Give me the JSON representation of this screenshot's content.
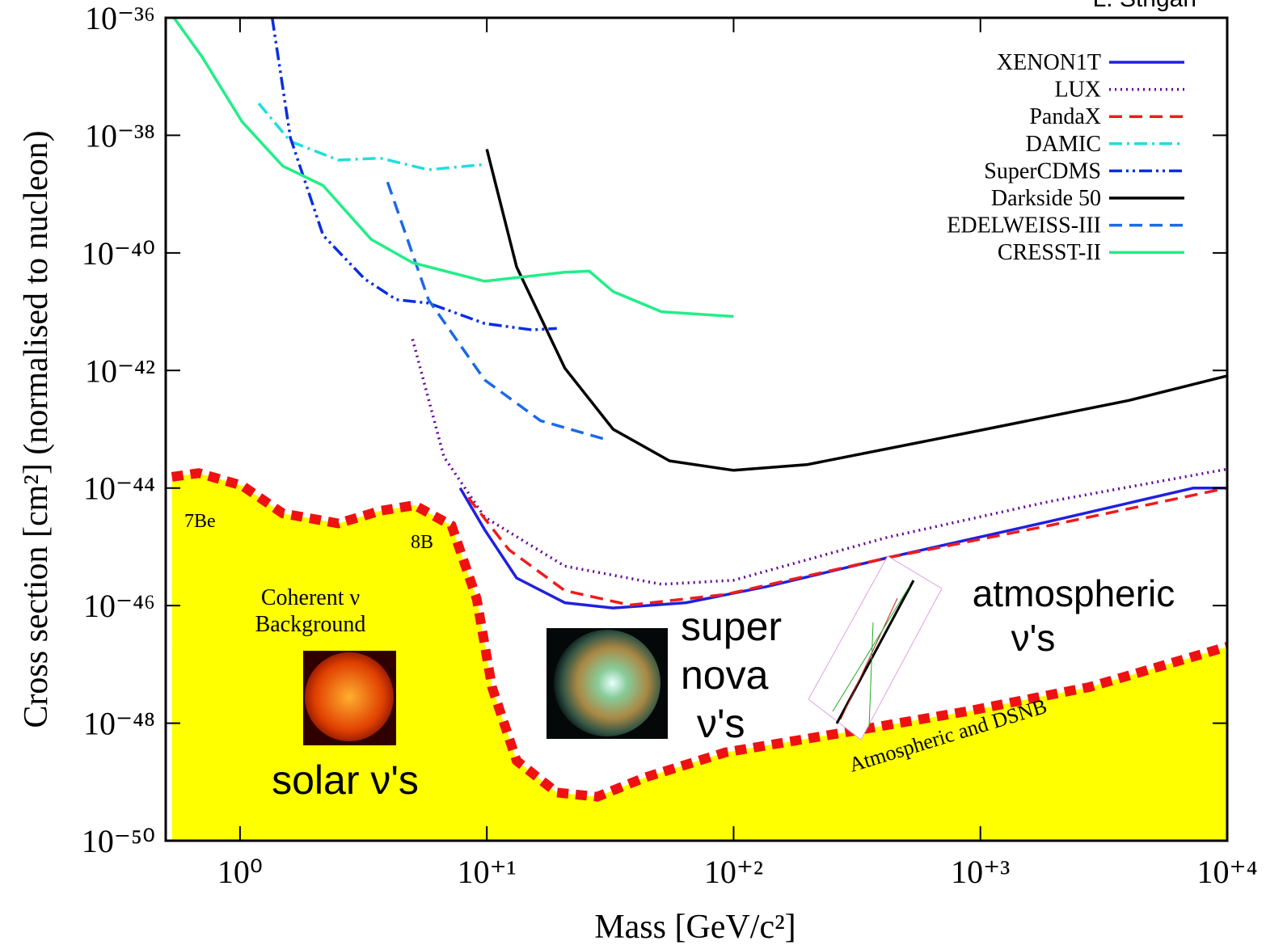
{
  "chart_data": {
    "type": "line",
    "credit": "L. Strigari",
    "xlabel": "Mass [GeV/c²]",
    "ylabel": "Cross section [cm²] (normalised to nucleon)",
    "xscale": "log",
    "yscale": "log",
    "xlim": [
      0.5,
      10000
    ],
    "ylim": [
      1e-50,
      1e-36
    ],
    "xticks": [
      {
        "value": 1,
        "label": "10⁰"
      },
      {
        "value": 10,
        "label": "10⁺¹"
      },
      {
        "value": 100,
        "label": "10⁺²"
      },
      {
        "value": 1000,
        "label": "10⁺³"
      },
      {
        "value": 10000,
        "label": "10⁺⁴"
      }
    ],
    "yticks": [
      {
        "value": 1e-36,
        "label": "10⁻³⁶"
      },
      {
        "value": 1e-38,
        "label": "10⁻³⁸"
      },
      {
        "value": 1e-40,
        "label": "10⁻⁴⁰"
      },
      {
        "value": 1e-42,
        "label": "10⁻⁴²"
      },
      {
        "value": 1e-44,
        "label": "10⁻⁴⁴"
      },
      {
        "value": 1e-46,
        "label": "10⁻⁴⁶"
      },
      {
        "value": 1e-48,
        "label": "10⁻⁴⁸"
      },
      {
        "value": 1e-50,
        "label": "10⁻⁵⁰"
      }
    ],
    "legend": "top-right",
    "series": [
      {
        "name": "XENON1T",
        "color": "#2020e0",
        "style": "solid",
        "x": [
          7.8,
          9.8,
          13.2,
          20.7,
          32.5,
          64,
          136,
          420,
          1900,
          7300,
          10000
        ],
        "values": [
          1e-44,
          1.95e-45,
          2.95e-46,
          1.12e-46,
          9.1e-47,
          1.12e-46,
          2.1e-46,
          6.5e-46,
          2.7e-45,
          1e-44,
          1e-44
        ]
      },
      {
        "name": "LUX",
        "color": "#660099",
        "style": "dotted",
        "x": [
          5.0,
          6.7,
          9.8,
          20.7,
          51,
          100,
          420,
          1900,
          10000
        ],
        "values": [
          3.4e-42,
          3.4e-44,
          3.2e-45,
          4.7e-46,
          2.3e-46,
          2.7e-46,
          1.45e-45,
          5.9e-45,
          2.1e-44
        ]
      },
      {
        "name": "PandaX",
        "color": "#ee1c1c",
        "style": "dashed",
        "x": [
          8.4,
          12.3,
          20.7,
          38,
          93,
          420,
          1900,
          10000
        ],
        "values": [
          6.9e-45,
          8.9e-46,
          1.8e-46,
          1.02e-46,
          1.55e-46,
          6.5e-46,
          2.3e-45,
          1e-44
        ]
      },
      {
        "name": "DAMIC",
        "color": "#22dddd",
        "style": "dashdot",
        "x": [
          1.19,
          1.6,
          2.5,
          3.7,
          5.8,
          9.8
        ],
        "values": [
          3.5e-38,
          7.9e-39,
          3.8e-39,
          4.1e-39,
          2.6e-39,
          3.2e-39
        ]
      },
      {
        "name": "SuperCDMS",
        "color": "#0a2ee0",
        "style": "dashdotdot",
        "x": [
          1.35,
          1.6,
          2.17,
          3.2,
          4.3,
          5.8,
          9.8,
          15.3,
          19.2
        ],
        "values": [
          1e-36,
          9.1e-39,
          2e-40,
          3.6e-41,
          1.6e-41,
          1.4e-41,
          6.3e-42,
          4.9e-42,
          5.2e-42
        ]
      },
      {
        "name": "Darkside 50",
        "color": "#000000",
        "style": "solid",
        "x": [
          10.0,
          13.2,
          20.7,
          32.5,
          55,
          100,
          198,
          890,
          4000,
          10000
        ],
        "values": [
          5.8e-39,
          5.8e-41,
          1.1e-42,
          1e-43,
          2.9e-44,
          2e-44,
          2.5e-44,
          8.7e-44,
          3.1e-43,
          8.1e-43
        ]
      },
      {
        "name": "EDELWEISS-III",
        "color": "#1a6ae6",
        "style": "dashed",
        "x": [
          3.96,
          5.8,
          9.8,
          16.5,
          30
        ],
        "values": [
          1.6e-39,
          1.6e-41,
          6.9e-43,
          1.4e-43,
          6.8e-44
        ]
      },
      {
        "name": "CRESST-II",
        "color": "#22ee88",
        "style": "solid",
        "x": [
          0.54,
          0.7,
          1.02,
          1.49,
          2.17,
          3.4,
          5.0,
          9.8,
          20.7,
          26,
          32.5,
          51,
          100
        ],
        "values": [
          1e-36,
          2.2e-37,
          1.7e-38,
          3e-39,
          1.4e-39,
          1.7e-40,
          6.8e-41,
          3.3e-41,
          4.7e-41,
          4.9e-41,
          2.2e-41,
          1e-41,
          8.3e-42
        ]
      }
    ],
    "neutrino_floor": {
      "color": "#ee1111",
      "fill": "#ffff00",
      "x": [
        0.53,
        0.68,
        1.02,
        1.49,
        2.5,
        3.7,
        5.1,
        7.2,
        9.1,
        10.5,
        13.2,
        19.2,
        28,
        44,
        93,
        290,
        890,
        2760,
        10000
      ],
      "values": [
        1.55e-44,
        1.8e-44,
        1.1e-44,
        3.7e-45,
        2.5e-45,
        4.1e-45,
        5.1e-45,
        2.3e-45,
        1.3e-46,
        4.1e-48,
        2.3e-49,
        6.6e-50,
        5.6e-50,
        1.2e-49,
        3.2e-49,
        7.1e-49,
        1.6e-48,
        4.1e-48,
        2e-47
      ]
    },
    "annotations": [
      "7Be",
      "8B",
      "Coherent ν",
      "Background",
      "solar ν's",
      "super",
      "nova",
      "ν's",
      "atmospheric",
      "ν's",
      "Atmospheric and DSNB"
    ]
  }
}
